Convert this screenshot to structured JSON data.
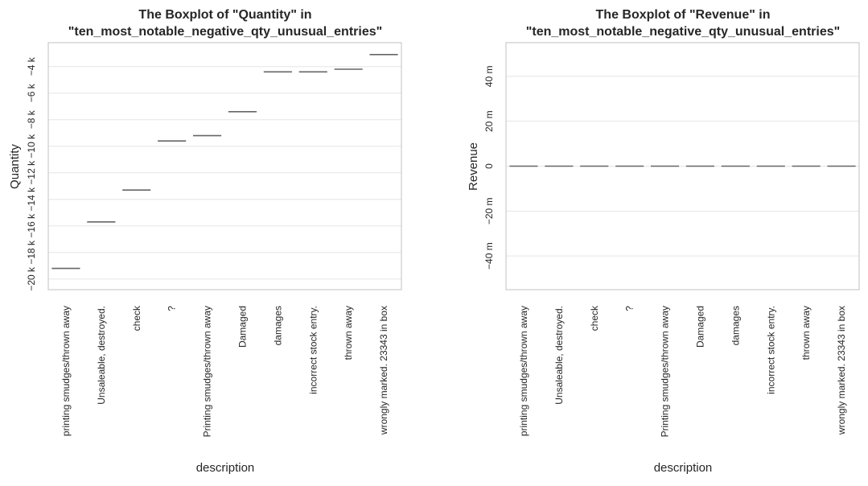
{
  "chart_data": [
    {
      "type": "boxplot",
      "title_line1": "The Boxplot of \"Quantity\" in",
      "title_line2": "\"ten_most_notable_negative_qty_unusual_entries\"",
      "xlabel": "description",
      "ylabel": "Quantity",
      "ylim": [
        -20800,
        -2200
      ],
      "y_ticks": [
        {
          "value": -20000,
          "label": "−20 k"
        },
        {
          "value": -18000,
          "label": "−18 k"
        },
        {
          "value": -16000,
          "label": "−16 k"
        },
        {
          "value": -14000,
          "label": "−14 k"
        },
        {
          "value": -12000,
          "label": "−12 k"
        },
        {
          "value": -10000,
          "label": "−10 k"
        },
        {
          "value": -8000,
          "label": "−8 k"
        },
        {
          "value": -6000,
          "label": "−6 k"
        },
        {
          "value": -4000,
          "label": "−4 k"
        }
      ],
      "grid": true,
      "categories": [
        "printing smudges/thrown away",
        "Unsaleable, destroyed.",
        "check",
        "?",
        "Printing smudges/thrown away",
        "Damaged",
        "damages",
        "incorrect stock entry.",
        "thrown away",
        "wrongly marked. 23343 in box"
      ],
      "values": [
        -19200,
        -15700,
        -13300,
        -9600,
        -9200,
        -7400,
        -4400,
        -4400,
        -4200,
        -3100
      ]
    },
    {
      "type": "boxplot",
      "title_line1": "The Boxplot of \"Revenue\" in",
      "title_line2": "\"ten_most_notable_negative_qty_unusual_entries\"",
      "xlabel": "description",
      "ylabel": "Revenue",
      "ylim": [
        -55,
        55
      ],
      "y_ticks": [
        {
          "value": -40,
          "label": "−40 m"
        },
        {
          "value": -20,
          "label": "−20 m"
        },
        {
          "value": 0,
          "label": "0"
        },
        {
          "value": 20,
          "label": "20 m"
        },
        {
          "value": 40,
          "label": "40 m"
        }
      ],
      "grid": true,
      "categories": [
        "printing smudges/thrown away",
        "Unsaleable, destroyed.",
        "check",
        "?",
        "Printing smudges/thrown away",
        "Damaged",
        "damages",
        "incorrect stock entry.",
        "thrown away",
        "wrongly marked. 23343 in box"
      ],
      "values": [
        0,
        0,
        0,
        0,
        0,
        0,
        0,
        0,
        0,
        0
      ]
    }
  ],
  "colors": {
    "frame": "#cccccc",
    "grid": "#e5e5e5",
    "median": "#666666",
    "text": "#262626"
  }
}
